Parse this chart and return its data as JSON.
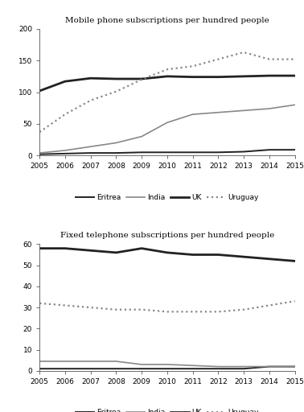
{
  "years": [
    2005,
    2006,
    2007,
    2008,
    2009,
    2010,
    2011,
    2012,
    2013,
    2014,
    2015
  ],
  "mobile": {
    "Eritrea": [
      2,
      3,
      4,
      4,
      5,
      5,
      5,
      5,
      6,
      9,
      9
    ],
    "India": [
      4,
      8,
      14,
      20,
      30,
      52,
      65,
      68,
      71,
      74,
      80
    ],
    "UK": [
      102,
      117,
      122,
      121,
      121,
      125,
      124,
      124,
      125,
      126,
      126
    ],
    "Uruguay": [
      37,
      65,
      87,
      101,
      120,
      136,
      141,
      152,
      163,
      152,
      152
    ]
  },
  "fixed": {
    "Eritrea": [
      1,
      1,
      1,
      1,
      1,
      1,
      1,
      1,
      1,
      2,
      2
    ],
    "India": [
      4.5,
      4.5,
      4.5,
      4.5,
      3,
      3,
      2.5,
      2,
      2,
      2,
      2
    ],
    "UK": [
      58,
      58,
      57,
      56,
      58,
      56,
      55,
      55,
      54,
      53,
      52
    ],
    "Uruguay": [
      32,
      31,
      30,
      29,
      29,
      28,
      28,
      28,
      29,
      31,
      33
    ]
  },
  "mobile_ylim": [
    0,
    200
  ],
  "mobile_yticks": [
    0,
    50,
    100,
    150,
    200
  ],
  "fixed_ylim": [
    0,
    60
  ],
  "fixed_yticks": [
    0,
    10,
    20,
    30,
    40,
    50,
    60
  ],
  "title_mobile": "Mobile phone subscriptions per hundred people",
  "title_fixed": "Fixed telephone subscriptions per hundred people",
  "countries": [
    "Eritrea",
    "India",
    "UK",
    "Uruguay"
  ],
  "colors": {
    "Eritrea": "#222222",
    "India": "#888888",
    "UK": "#222222",
    "Uruguay": "#888888"
  },
  "linestyles": {
    "Eritrea": "-",
    "India": "-",
    "UK": "-",
    "Uruguay": ":"
  },
  "linewidths": {
    "Eritrea": 1.4,
    "India": 1.2,
    "UK": 2.0,
    "Uruguay": 1.6
  },
  "markers": {
    "Eritrea": "none",
    "India": "none",
    "UK": "none",
    "Uruguay": "none"
  }
}
